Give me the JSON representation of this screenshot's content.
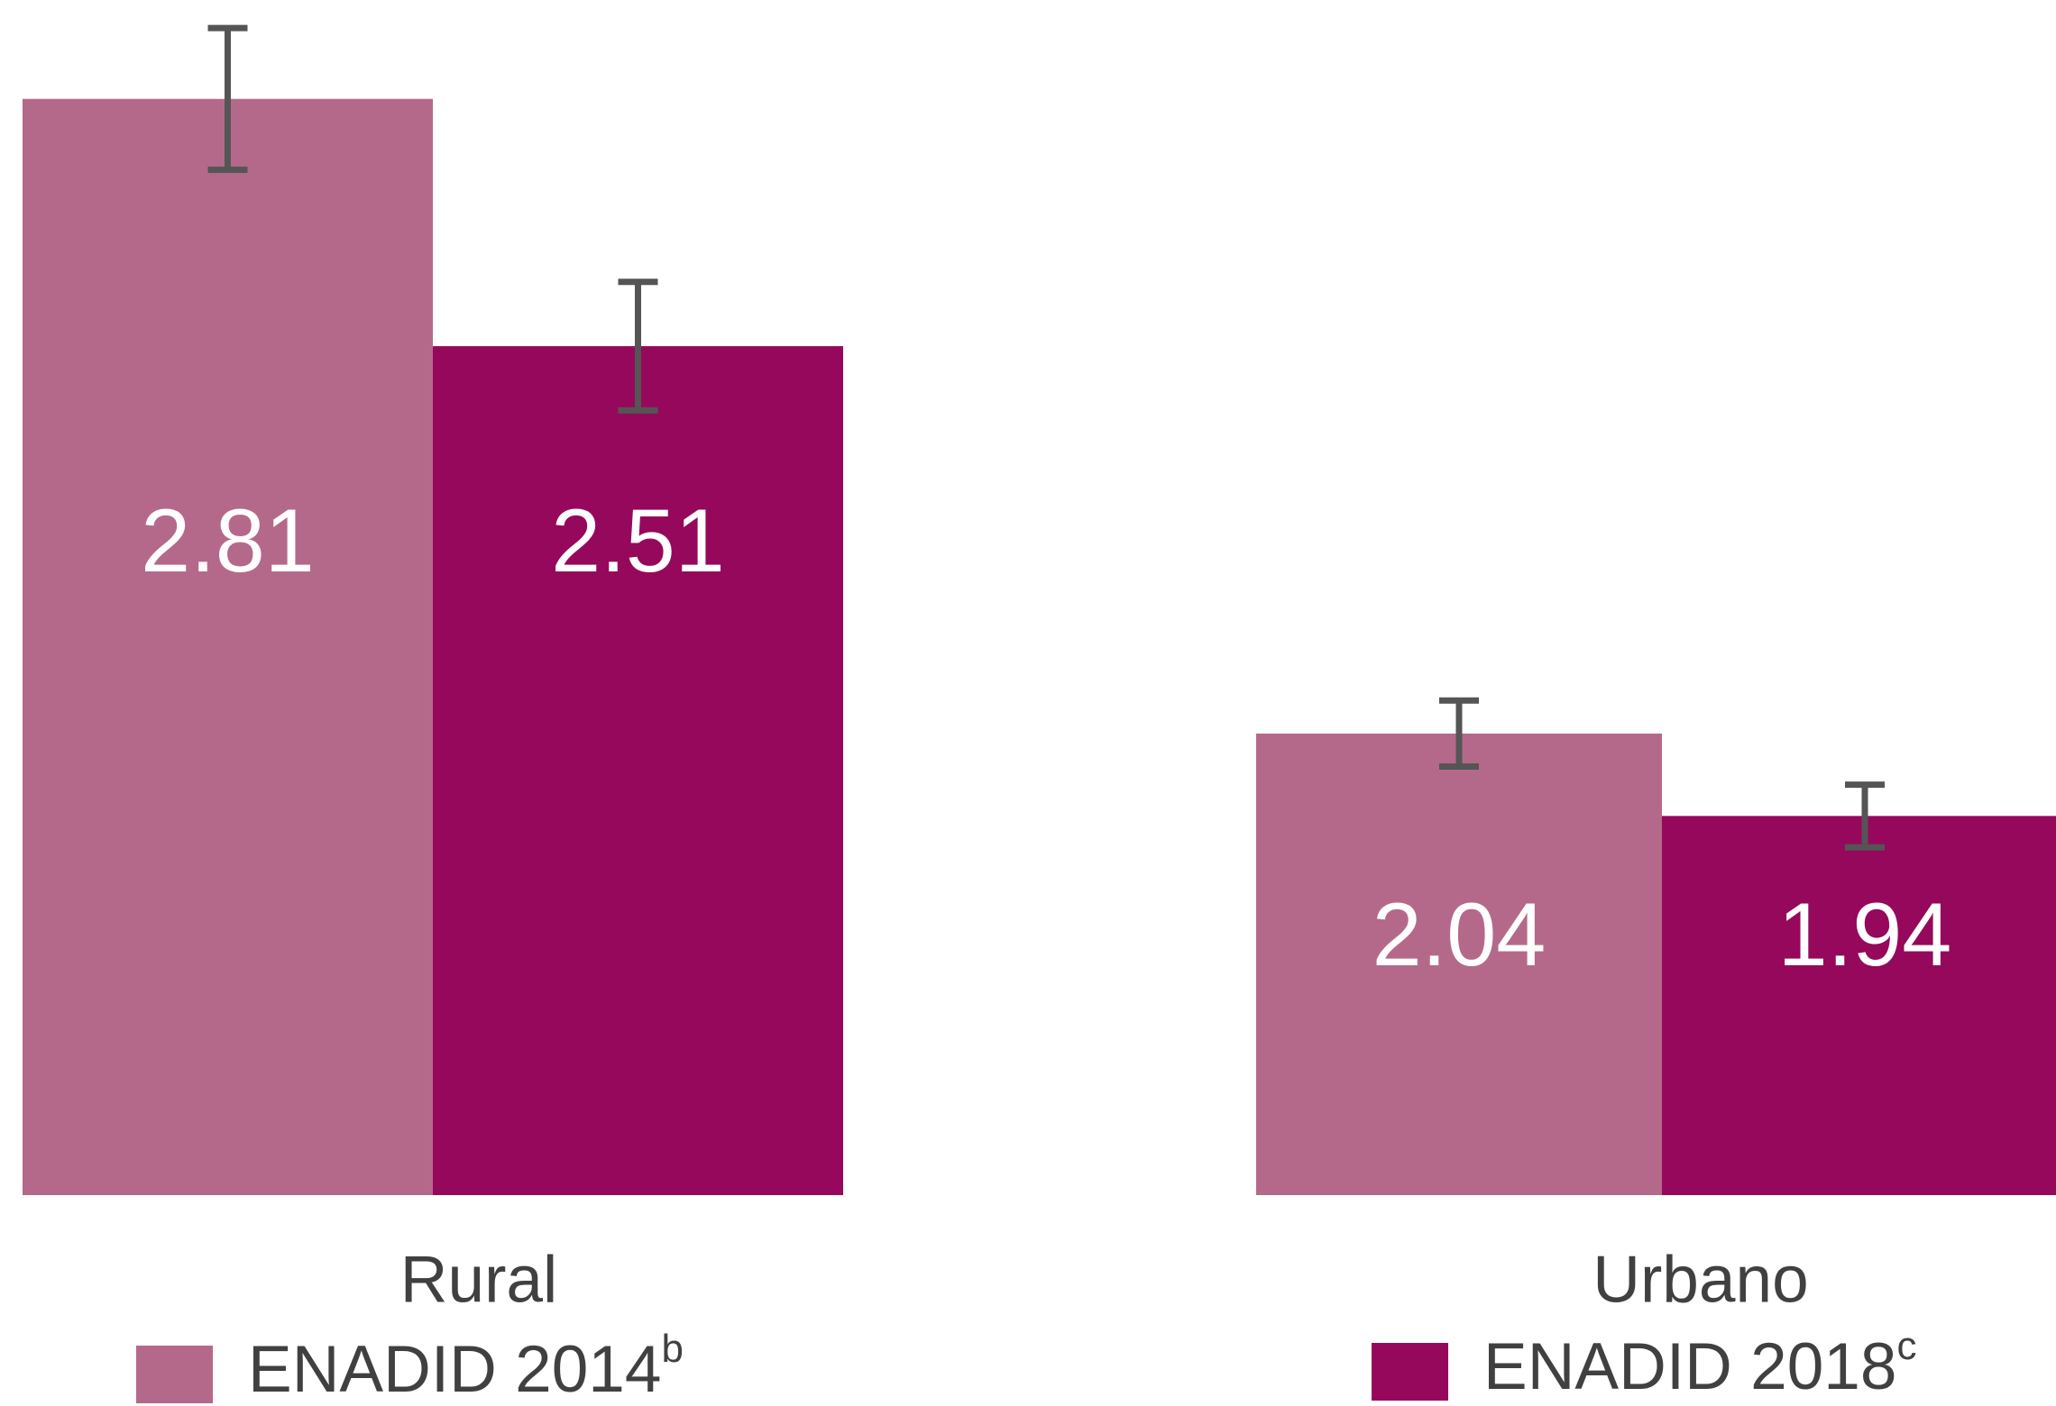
{
  "chart_data": {
    "type": "bar",
    "categories": [
      "Rural",
      "Urbano"
    ],
    "series": [
      {
        "name": "ENADID 2014",
        "note": "b",
        "color": "#b5698a",
        "values": [
          2.81,
          2.04
        ],
        "errors": [
          0.086,
          0.04
        ]
      },
      {
        "name": "ENADID 2018",
        "note": "c",
        "color": "#96085b",
        "values": [
          2.51,
          1.94
        ],
        "errors": [
          0.078,
          0.038
        ]
      }
    ],
    "ylim": [
      1.48,
      2.93
    ]
  }
}
